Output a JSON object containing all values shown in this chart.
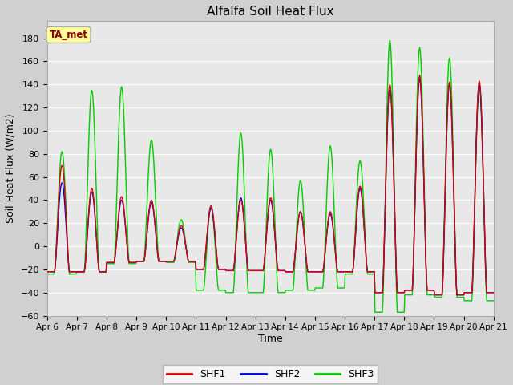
{
  "title": "Alfalfa Soil Heat Flux",
  "ylabel": "Soil Heat Flux (W/m2)",
  "xlabel": "Time",
  "annotation": "TA_met",
  "ylim": [
    -60,
    195
  ],
  "yticks": [
    -60,
    -40,
    -20,
    0,
    20,
    40,
    60,
    80,
    100,
    120,
    140,
    160,
    180
  ],
  "colors": {
    "SHF1": "#dd0000",
    "SHF2": "#0000dd",
    "SHF3": "#00cc00"
  },
  "bg_color": "#e8e8e8",
  "annotation_bg": "#ffff99",
  "annotation_fg": "#880000",
  "annotation_edge": "#aaaaaa",
  "grid_color": "#ffffff",
  "fig_bg": "#d0d0d0",
  "line_width": 1.0,
  "days": {
    "peaks_shf1": [
      70,
      50,
      43,
      40,
      18,
      35,
      40,
      42,
      30,
      30,
      52,
      140,
      148,
      142,
      143
    ],
    "peaks_shf2": [
      55,
      47,
      40,
      38,
      16,
      33,
      42,
      40,
      30,
      28,
      50,
      138,
      145,
      140,
      140
    ],
    "peaks_shf3": [
      82,
      135,
      138,
      92,
      23,
      35,
      98,
      84,
      57,
      87,
      74,
      178,
      172,
      163,
      140
    ],
    "night_shf1": [
      -22,
      -22,
      -14,
      -13,
      -13,
      -20,
      -21,
      -21,
      -22,
      -22,
      -22,
      -40,
      -38,
      -42,
      -40
    ],
    "night_shf2": [
      -22,
      -22,
      -14,
      -13,
      -13,
      -20,
      -21,
      -21,
      -22,
      -22,
      -22,
      -40,
      -38,
      -42,
      -40
    ],
    "night_shf3": [
      -24,
      -22,
      -15,
      -13,
      -14,
      -38,
      -40,
      -40,
      -38,
      -36,
      -24,
      -57,
      -42,
      -44,
      -47
    ]
  }
}
